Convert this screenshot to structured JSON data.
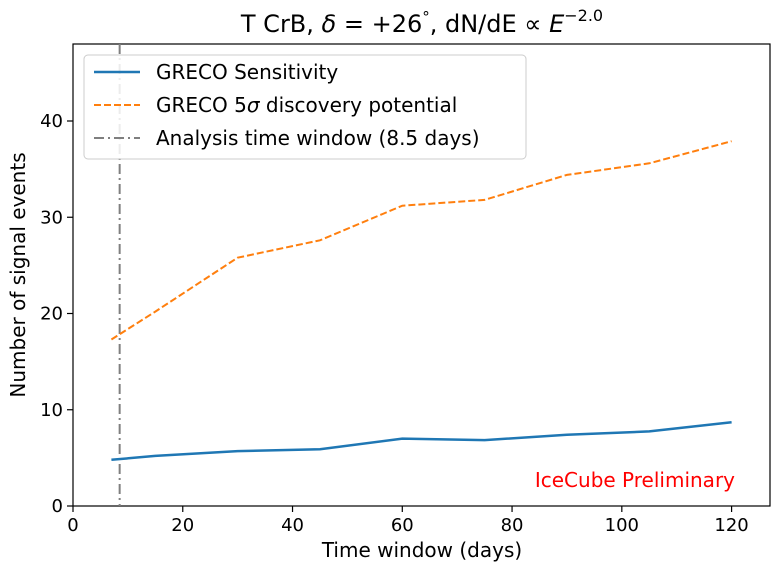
{
  "chart_data": {
    "type": "line",
    "title_parts": {
      "prefix": "T CrB, ",
      "delta": "δ",
      "eq": " = +26",
      "degree": "°",
      "mid": ", dN/dE ∝ ",
      "energy": "E",
      "exponent": "−2.0"
    },
    "xlabel": "Time window (days)",
    "ylabel": "Number of signal events",
    "xlim": [
      0,
      127
    ],
    "ylim": [
      0,
      48
    ],
    "xticks": [
      0,
      20,
      40,
      60,
      80,
      100,
      120
    ],
    "yticks": [
      0,
      10,
      20,
      30,
      40
    ],
    "series": [
      {
        "name": "GRECO Sensitivity",
        "style": "solid",
        "color": "#1f77b4",
        "x": [
          7,
          15,
          30,
          45,
          60,
          75,
          90,
          105,
          120
        ],
        "values": [
          4.8,
          5.2,
          5.7,
          5.9,
          7.0,
          6.85,
          7.4,
          7.75,
          8.7
        ]
      },
      {
        "name": "GRECO 5σ discovery potential",
        "style": "dashed",
        "color": "#ff7f0e",
        "x": [
          7,
          15,
          30,
          45,
          60,
          75,
          90,
          105,
          120
        ],
        "values": [
          17.3,
          20.2,
          25.8,
          27.6,
          31.2,
          31.8,
          34.4,
          35.6,
          37.9
        ]
      }
    ],
    "vline": {
      "name": "Analysis time window (8.5 days)",
      "x": 8.5,
      "style": "dashdot",
      "color": "#7f7f7f"
    },
    "legend_labels": {
      "sensitivity": "GRECO Sensitivity",
      "discovery_prefix": "GRECO 5",
      "discovery_sigma": "σ",
      "discovery_suffix": " discovery potential",
      "window": "Analysis time window (8.5 days)"
    },
    "legend_position": "top-left",
    "annotation": {
      "text": "IceCube Preliminary",
      "color": "#ff0000"
    },
    "grid": false
  }
}
